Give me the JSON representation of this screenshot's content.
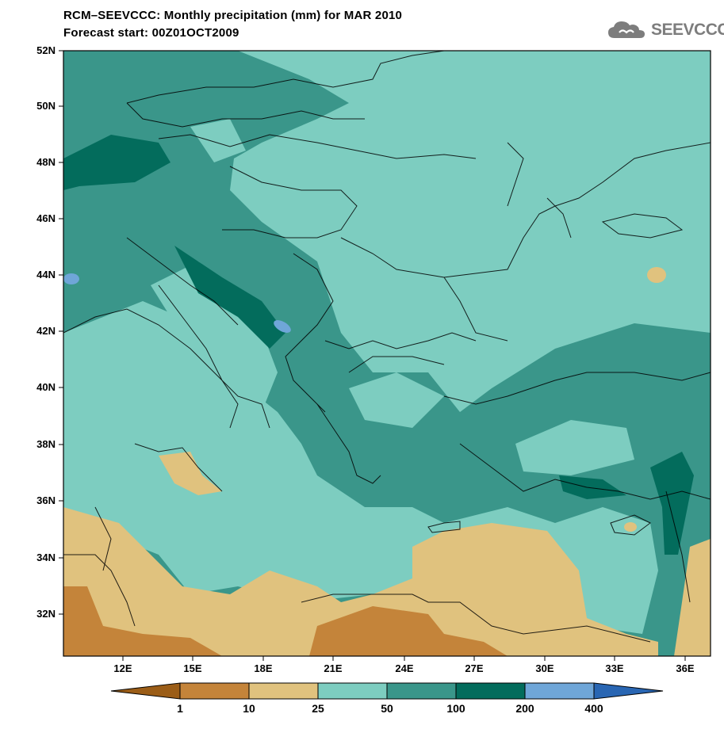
{
  "title": {
    "line1": "RCM–SEEVCCC: Monthly precipitation (mm) for MAR 2010",
    "line2": "Forecast start: 00Z01OCT2009"
  },
  "logo": {
    "text": "SEEVCCC",
    "icon": "cloud-icon"
  },
  "axes": {
    "lat_labels": [
      "52N",
      "50N",
      "48N",
      "46N",
      "44N",
      "42N",
      "40N",
      "38N",
      "36N",
      "34N",
      "32N"
    ],
    "lon_labels": [
      "12E",
      "15E",
      "18E",
      "21E",
      "24E",
      "27E",
      "30E",
      "33E",
      "36E"
    ]
  },
  "colorbar": {
    "thresholds": [
      "1",
      "10",
      "25",
      "50",
      "100",
      "200",
      "400"
    ],
    "colors": [
      "#9b5d17",
      "#c4843a",
      "#e0c27e",
      "#7dcdc0",
      "#3a968a",
      "#036c5c",
      "#6fa6d8",
      "#2966b3"
    ]
  }
}
